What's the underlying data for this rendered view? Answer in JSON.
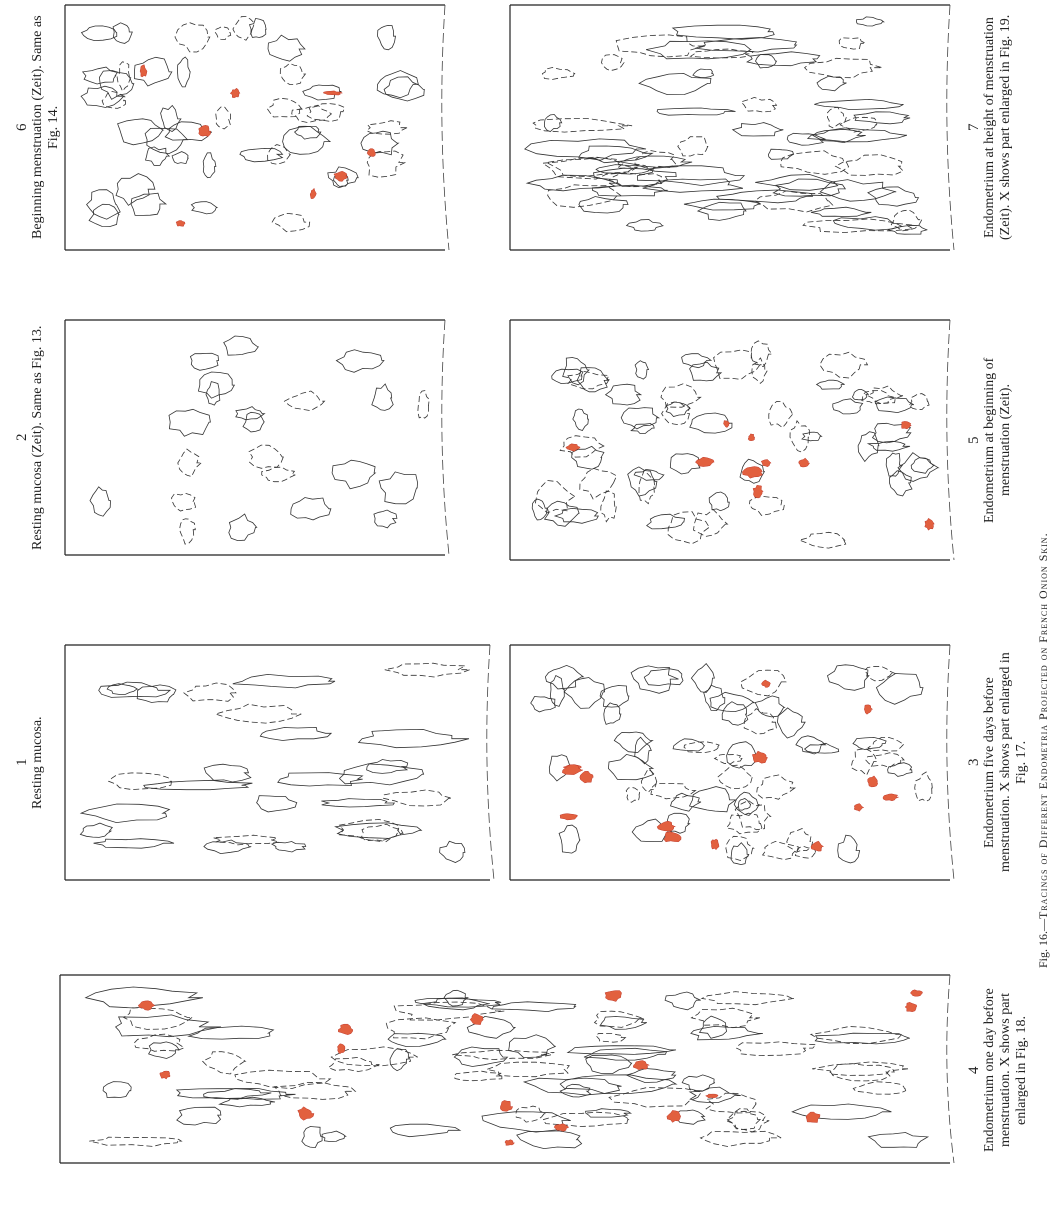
{
  "panels": [
    {
      "number": "6",
      "caption": "Beginning menstruation (Zeit). Same as Fig. 14."
    },
    {
      "number": "2",
      "caption": "Resting mucosa (Zeit). Same as Fig. 13."
    },
    {
      "number": "1",
      "caption": "Resting mucosa."
    },
    {
      "number": "7",
      "caption": "Endometrium at height of menstruation (Zeit). X shows part enlarged in Fig. 19."
    },
    {
      "number": "5",
      "caption": "Endometrium at beginning of menstruation (Zeit)."
    },
    {
      "number": "3",
      "caption": "Endometrium five days before menstruation. X shows part enlarged in Fig. 17."
    },
    {
      "number": "4",
      "caption": "Endometrium one day before menstruation. X shows part enlarged in Fig. 18."
    }
  ],
  "figure_caption": {
    "label": "Fig. 16.—",
    "title": "Tracings of Different Endometria Projected on French Onion Skin."
  }
}
